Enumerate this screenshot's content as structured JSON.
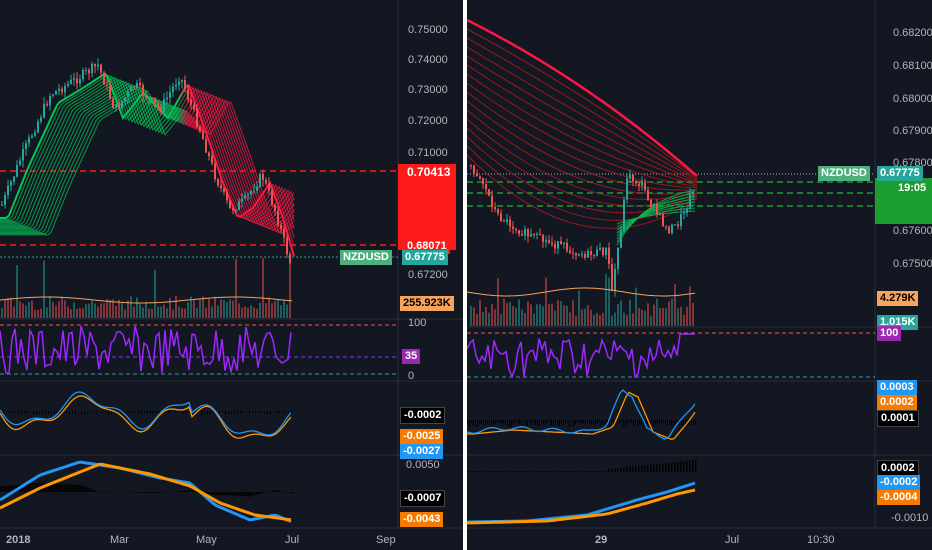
{
  "left": {
    "price_axis_ticks": [
      "0.75000",
      "0.74000",
      "0.73000",
      "0.72000",
      "0.71000",
      "0.67200"
    ],
    "price_badges": {
      "upper_red": "0.70413",
      "lower_red": "0.68071",
      "symbol": "NZDUSD",
      "last": "0.67775",
      "volume": "255.923K"
    },
    "rsi_ticks": [
      "100",
      "0"
    ],
    "rsi_value": "35",
    "osc1_values": [
      "-0.0002",
      "-0.0025",
      "-0.0027"
    ],
    "macd_ticks": [
      "0.0050"
    ],
    "macd_values": [
      "-0.0007",
      "-0.0043"
    ],
    "time_axis": [
      "2018",
      "Mar",
      "May",
      "Jul",
      "Sep"
    ]
  },
  "right": {
    "price_axis_ticks": [
      "0.68200",
      "0.68100",
      "0.68000",
      "0.67900",
      "0.67800",
      "0.67600",
      "0.67500"
    ],
    "price_badges": {
      "symbol": "NZDUSD",
      "last": "0.67775",
      "countdown": "19:05",
      "volume_a": "4.279K",
      "volume_b": "1.015K"
    },
    "rsi_value": "100",
    "osc1_values": [
      "0.0003",
      "0.0002",
      "0.0001"
    ],
    "macd_values": [
      "0.0002",
      "-0.0002",
      "-0.0004",
      "-0.0010"
    ],
    "time_axis": [
      "29",
      "Jul",
      "10:30"
    ]
  },
  "colors": {
    "background": "#131722",
    "bull": "#26a69a",
    "bear": "#ef5350",
    "ribbon_up": "#00c853",
    "ribbon_down": "#ff1744",
    "rsi": "#9c27ff",
    "osc_blue": "#2196f3",
    "osc_orange": "#ff9800"
  }
}
